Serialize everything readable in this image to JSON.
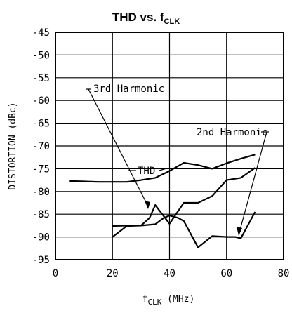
{
  "chart_data": {
    "type": "line",
    "title_main": "THD vs. f",
    "title_sub": "CLK",
    "xlabel_main": "f",
    "xlabel_sub": "CLK",
    "xlabel_unit": " (MHz)",
    "ylabel": "DISTORTION (dBc)",
    "xlim": [
      0,
      80
    ],
    "ylim": [
      -95,
      -45
    ],
    "x_ticks": [
      0,
      20,
      40,
      60,
      80
    ],
    "x_tick_labels": [
      "0",
      "20",
      "40",
      "60",
      "80"
    ],
    "y_ticks": [
      -45,
      -50,
      -55,
      -60,
      -65,
      -70,
      -75,
      -80,
      -85,
      -90,
      -95
    ],
    "y_tick_labels": [
      "-45",
      "-50",
      "-55",
      "-60",
      "-65",
      "-70",
      "-75",
      "-80",
      "-85",
      "-90",
      "-95"
    ],
    "grid": true,
    "series": [
      {
        "name": "THD",
        "x": [
          5,
          10,
          15,
          20,
          25,
          30,
          35,
          40,
          45,
          50,
          55,
          60,
          65,
          70
        ],
        "y": [
          -77.7,
          -77.8,
          -77.9,
          -77.9,
          -77.9,
          -77.5,
          -77.0,
          -75.5,
          -73.7,
          -74.2,
          -75.0,
          -73.8,
          -72.8,
          -71.9
        ]
      },
      {
        "name": "3rd Harmonic",
        "x": [
          20,
          25,
          30,
          33,
          35,
          40,
          45,
          50,
          55,
          60,
          65,
          70
        ],
        "y": [
          -87.6,
          -87.5,
          -87.5,
          -85.8,
          -83.0,
          -87.1,
          -82.5,
          -82.5,
          -81.0,
          -77.5,
          -77.0,
          -74.8
        ]
      },
      {
        "name": "2nd Harmonic",
        "x": [
          20,
          25,
          30,
          35,
          38,
          40,
          43,
          45,
          50,
          55,
          60,
          63,
          65,
          70
        ],
        "y": [
          -90.0,
          -87.6,
          -87.5,
          -87.2,
          -85.8,
          -85.3,
          -85.8,
          -86.5,
          -92.3,
          -89.8,
          -90.0,
          -90.0,
          -90.3,
          -84.5
        ]
      }
    ],
    "annotations": [
      {
        "text": "3rd Harmonic",
        "series": "3rd Harmonic",
        "at_x": 40,
        "at_y": -85.3
      },
      {
        "text": "2nd Harmonic",
        "series": "2nd Harmonic",
        "at_x": 65,
        "at_y": -90.0
      },
      {
        "text": "THD",
        "series": "THD",
        "at_x": 38,
        "at_y": -76.3
      }
    ]
  }
}
